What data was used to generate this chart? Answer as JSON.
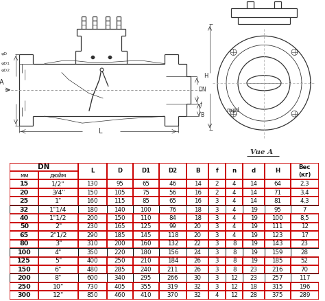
{
  "rows": [
    [
      "15",
      "1/2\"",
      "130",
      "95",
      "65",
      "46",
      "14",
      "2",
      "4",
      "14",
      "64",
      "2,3"
    ],
    [
      "20",
      "3/4\"",
      "150",
      "105",
      "75",
      "56",
      "16",
      "2",
      "4",
      "14",
      "71",
      "3,4"
    ],
    [
      "25",
      "1\"",
      "160",
      "115",
      "85",
      "65",
      "16",
      "3",
      "4",
      "14",
      "81",
      "4,3"
    ],
    [
      "32",
      "1\"1/4",
      "180",
      "140",
      "100",
      "76",
      "18",
      "3",
      "4",
      "19",
      "95",
      "7"
    ],
    [
      "40",
      "1\"1/2",
      "200",
      "150",
      "110",
      "84",
      "18",
      "3",
      "4",
      "19",
      "100",
      "8,5"
    ],
    [
      "50",
      "2\"",
      "230",
      "165",
      "125",
      "99",
      "20",
      "3",
      "4",
      "19",
      "111",
      "12"
    ],
    [
      "65",
      "2\"1/2",
      "290",
      "185",
      "145",
      "118",
      "20",
      "3",
      "4",
      "19",
      "123",
      "17"
    ],
    [
      "80",
      "3\"",
      "310",
      "200",
      "160",
      "132",
      "22",
      "3",
      "8",
      "19",
      "143",
      "23"
    ],
    [
      "100",
      "4\"",
      "350",
      "220",
      "180",
      "156",
      "24",
      "3",
      "8",
      "19",
      "159",
      "28"
    ],
    [
      "125",
      "5\"",
      "400",
      "250",
      "210",
      "184",
      "26",
      "3",
      "8",
      "19",
      "185",
      "52"
    ],
    [
      "150",
      "6\"",
      "480",
      "285",
      "240",
      "211",
      "26",
      "3",
      "8",
      "23",
      "216",
      "70"
    ],
    [
      "200",
      "8\"",
      "600",
      "340",
      "295",
      "266",
      "30",
      "3",
      "12",
      "23",
      "257",
      "117"
    ],
    [
      "250",
      "10\"",
      "730",
      "405",
      "355",
      "319",
      "32",
      "3",
      "12",
      "18",
      "315",
      "196"
    ],
    [
      "300",
      "12\"",
      "850",
      "460",
      "410",
      "370",
      "32",
      "4",
      "12",
      "28",
      "375",
      "289"
    ]
  ],
  "red_rows": [
    0,
    1,
    2,
    4,
    5,
    6,
    7,
    9,
    10,
    12,
    13
  ],
  "bg_color": "#ffffff",
  "red": "#cc0000",
  "black": "#111111"
}
